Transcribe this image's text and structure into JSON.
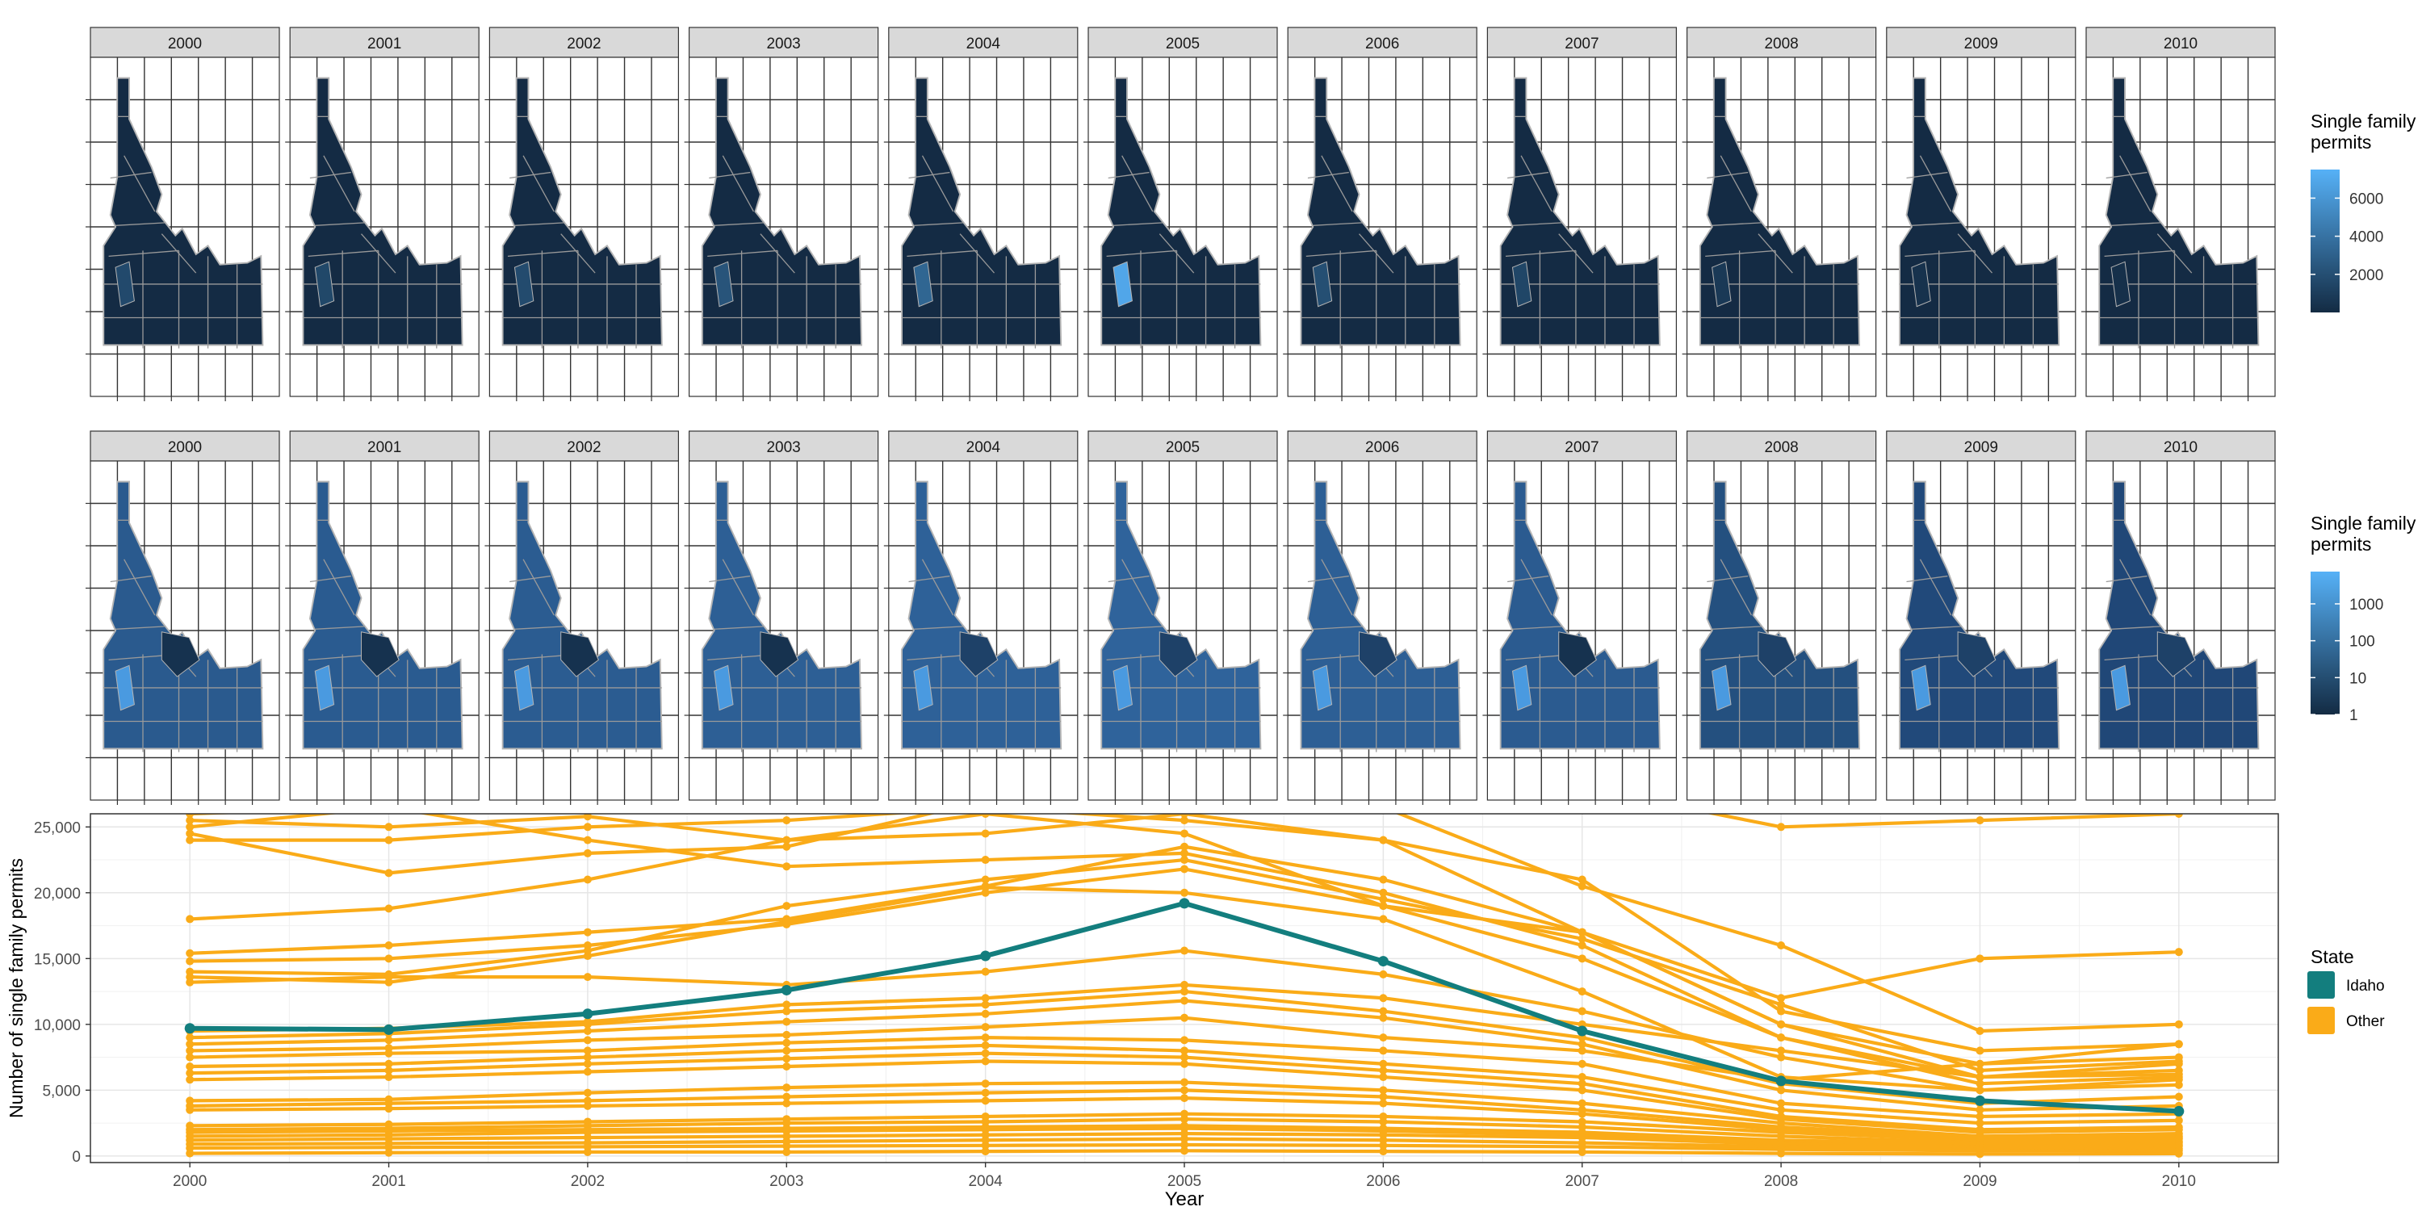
{
  "chart_data": [
    {
      "type": "choropleth-facets",
      "facets": [
        "2000",
        "2001",
        "2002",
        "2003",
        "2004",
        "2005",
        "2006",
        "2007",
        "2008",
        "2009",
        "2010"
      ],
      "legend": {
        "title": [
          "Single family",
          "permits"
        ],
        "scale": "linear",
        "ticks": [
          "2000",
          "4000",
          "6000"
        ],
        "range": [
          0,
          7500
        ],
        "colors": {
          "low": "#132B43",
          "high": "#56B1F7"
        },
        "placement": "right"
      },
      "highlight_values": {
        "2000": 1700,
        "2001": 1600,
        "2002": 1800,
        "2003": 2300,
        "2004": 3300,
        "2005": 6900,
        "2006": 2000,
        "2007": 1500,
        "2008": 800,
        "2009": 400,
        "2010": 300
      }
    },
    {
      "type": "choropleth-facets",
      "facets": [
        "2000",
        "2001",
        "2002",
        "2003",
        "2004",
        "2005",
        "2006",
        "2007",
        "2008",
        "2009",
        "2010"
      ],
      "legend": {
        "title": [
          "Single family",
          "permits"
        ],
        "scale": "log10",
        "ticks": [
          "1",
          "10",
          "100",
          "1000"
        ],
        "range": [
          1,
          7500
        ],
        "colors": {
          "low": "#132B43",
          "high": "#56B1F7"
        },
        "placement": "right"
      }
    },
    {
      "type": "line",
      "xlabel": "Year",
      "ylabel": "Number of single family permits",
      "x": [
        2000,
        2001,
        2002,
        2003,
        2004,
        2005,
        2006,
        2007,
        2008,
        2009,
        2010
      ],
      "x_ticks": [
        "2000",
        "2001",
        "2002",
        "2003",
        "2004",
        "2005",
        "2006",
        "2007",
        "2008",
        "2009",
        "2010"
      ],
      "y_ticks": [
        "0",
        "5,000",
        "10,000",
        "15,000",
        "20,000",
        "25,000"
      ],
      "y_tick_values": [
        0,
        5000,
        10000,
        15000,
        20000,
        25000
      ],
      "ylim": [
        -500,
        26000
      ],
      "grid": true,
      "legend": {
        "title": "State",
        "placement": "right",
        "entries": [
          {
            "label": "Idaho",
            "color": "#137E7E"
          },
          {
            "label": "Other",
            "color": "#FAAB18"
          }
        ]
      },
      "highlight_series": {
        "name": "Idaho",
        "color": "#137E7E",
        "values": [
          9700,
          9600,
          10800,
          12600,
          15200,
          19200,
          14800,
          9500,
          5700,
          4200,
          3400
        ]
      },
      "other_color": "#FAAB18",
      "other_series": [
        [
          26000,
          26500,
          27000,
          27500,
          28000,
          28500,
          29000,
          28000,
          25000,
          25500,
          26000
        ],
        [
          25500,
          25000,
          25800,
          24000,
          24500,
          26000,
          24000,
          21000,
          11000,
          8000,
          8500
        ],
        [
          25000,
          26500,
          24000,
          22000,
          22500,
          23000,
          20000,
          16000,
          9000,
          6000,
          6500
        ],
        [
          24500,
          21500,
          23000,
          23500,
          27000,
          28000,
          26500,
          20500,
          16000,
          9500,
          10000
        ],
        [
          24000,
          24000,
          25000,
          25500,
          26500,
          25500,
          24000,
          17000,
          10000,
          7000,
          7500
        ],
        [
          18000,
          18800,
          21000,
          24000,
          26000,
          24500,
          19000,
          17000,
          12000,
          15000,
          15500
        ],
        [
          15400,
          16000,
          17000,
          18000,
          20500,
          23500,
          21000,
          17000,
          10000,
          6000,
          7000
        ],
        [
          14800,
          15000,
          16000,
          17600,
          20000,
          21800,
          19000,
          15000,
          9000,
          5500,
          6000
        ],
        [
          14000,
          13800,
          15600,
          19000,
          21000,
          22500,
          19500,
          16500,
          11500,
          6500,
          7200
        ],
        [
          13600,
          13200,
          15200,
          17800,
          20400,
          20000,
          18000,
          12500,
          6000,
          5000,
          5400
        ],
        [
          13200,
          13600,
          13600,
          13000,
          14000,
          15600,
          13800,
          11000,
          7500,
          5000,
          5800
        ],
        [
          9500,
          9700,
          10200,
          11500,
          12000,
          13000,
          12000,
          10000,
          8000,
          6000,
          6200
        ],
        [
          9000,
          9300,
          10000,
          11000,
          11500,
          12500,
          11000,
          9000,
          5500,
          4000,
          4500
        ],
        [
          8500,
          8800,
          9500,
          10200,
          10800,
          11800,
          10500,
          8500,
          5000,
          3500,
          3800
        ],
        [
          8000,
          8200,
          8800,
          9200,
          9800,
          10500,
          9000,
          8000,
          5800,
          7000,
          8500
        ],
        [
          7500,
          7800,
          8000,
          8600,
          9000,
          8800,
          8000,
          7000,
          4000,
          3000,
          3200
        ],
        [
          6800,
          7000,
          7500,
          8000,
          8400,
          8000,
          7000,
          6000,
          3500,
          2500,
          2700
        ],
        [
          6300,
          6500,
          7000,
          7400,
          7800,
          7500,
          6500,
          5500,
          3000,
          2000,
          2200
        ],
        [
          5800,
          6000,
          6400,
          6800,
          7200,
          7000,
          6000,
          5000,
          2800,
          1800,
          2000
        ],
        [
          4200,
          4300,
          4800,
          5200,
          5500,
          5600,
          5000,
          4000,
          2500,
          1500,
          1700
        ],
        [
          3800,
          4000,
          4200,
          4500,
          4800,
          5000,
          4500,
          3500,
          2200,
          1400,
          1500
        ],
        [
          3500,
          3600,
          3800,
          4000,
          4200,
          4400,
          4000,
          3200,
          2000,
          1300,
          1400
        ],
        [
          2300,
          2400,
          2600,
          2800,
          3000,
          3200,
          3000,
          2600,
          1800,
          1200,
          1300
        ],
        [
          2000,
          2100,
          2300,
          2500,
          2600,
          2800,
          2600,
          2200,
          1500,
          1000,
          1100
        ],
        [
          1800,
          1900,
          2000,
          2100,
          2200,
          2300,
          2100,
          1800,
          1200,
          900,
          1000
        ],
        [
          1500,
          1600,
          1800,
          1900,
          2000,
          2100,
          1900,
          1600,
          1000,
          800,
          850
        ],
        [
          1200,
          1300,
          1400,
          1500,
          1600,
          1700,
          1600,
          1400,
          900,
          700,
          750
        ],
        [
          900,
          950,
          1000,
          1100,
          1200,
          1300,
          1200,
          1000,
          700,
          500,
          550
        ],
        [
          600,
          650,
          700,
          750,
          800,
          850,
          800,
          700,
          500,
          400,
          420
        ],
        [
          200,
          250,
          300,
          300,
          350,
          400,
          350,
          300,
          200,
          150,
          180
        ]
      ]
    }
  ]
}
